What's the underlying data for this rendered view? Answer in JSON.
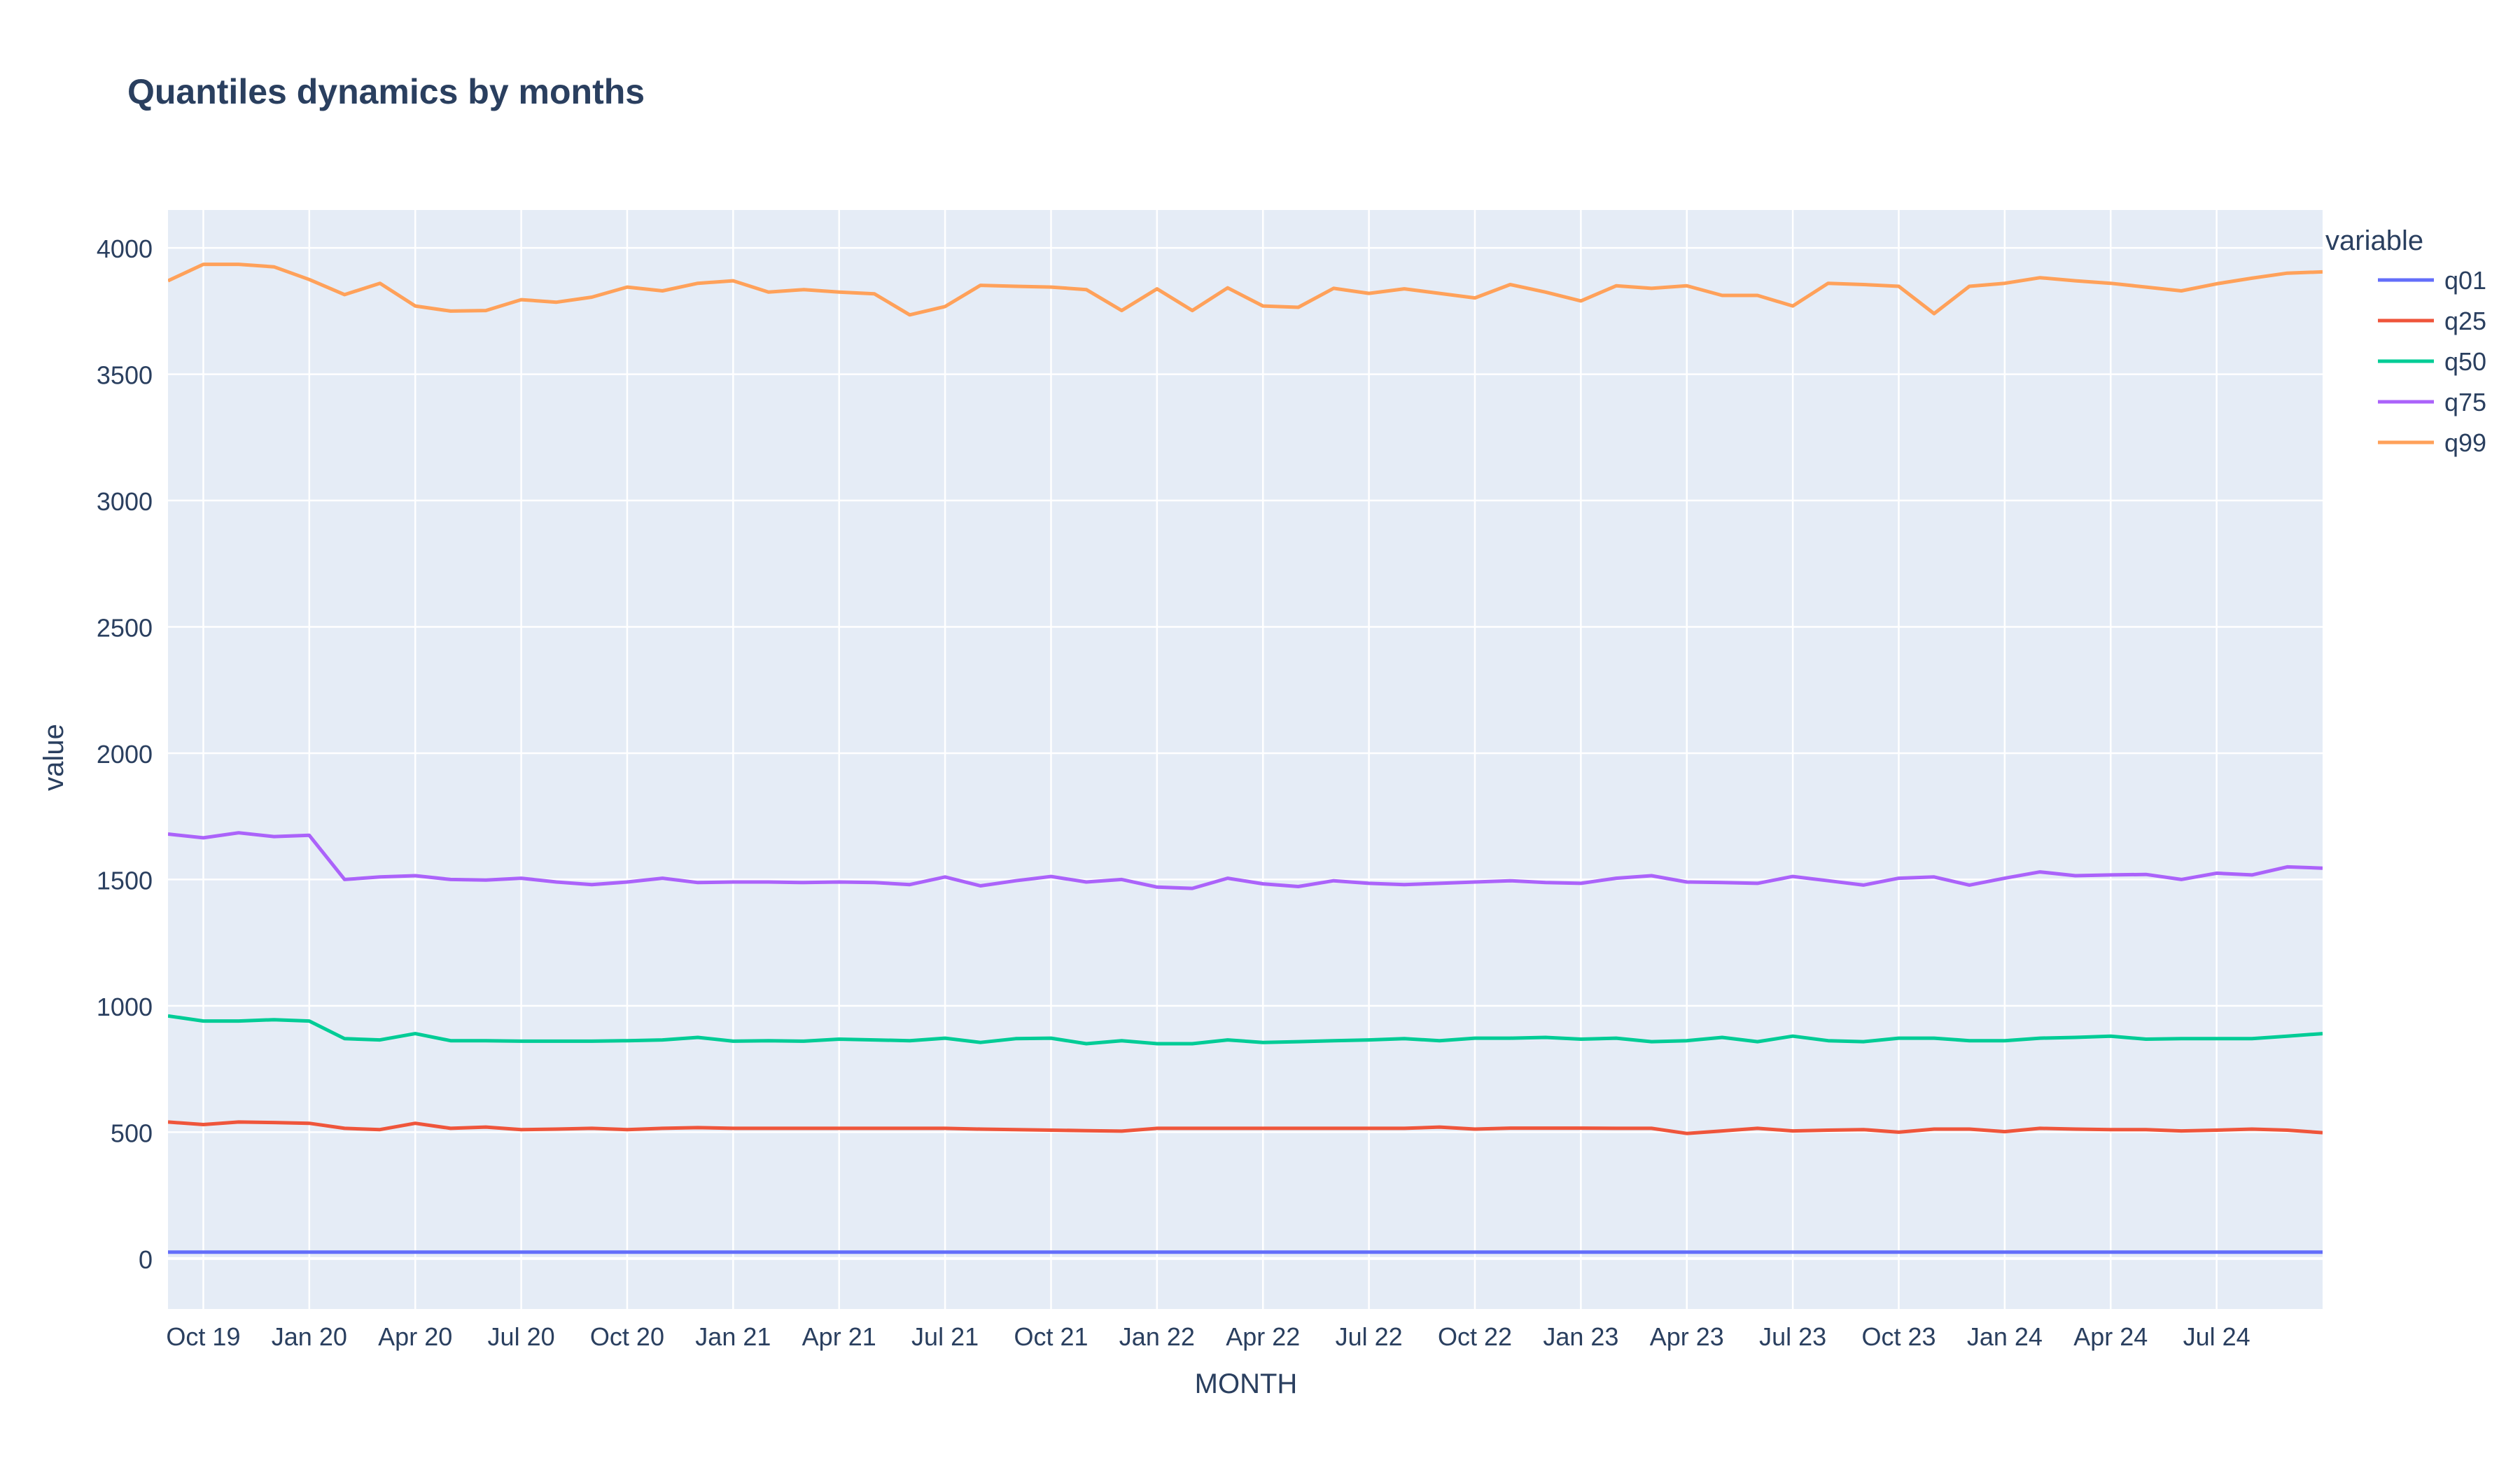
{
  "chart_data": {
    "type": "line",
    "title": "Quantiles dynamics by months",
    "xlabel": "MONTH",
    "ylabel": "value",
    "legend_title": "variable",
    "legend_placement": "right",
    "grid": true,
    "ylim": [
      -200,
      4150
    ],
    "xlim": [
      "2019-09-01",
      "2024-10-01"
    ],
    "x_tick_labels": [
      "Oct 19",
      "Jan 20",
      "Apr 20",
      "Jul 20",
      "Oct 20",
      "Jan 21",
      "Apr 21",
      "Jul 21",
      "Oct 21",
      "Jan 22",
      "Apr 22",
      "Jul 22",
      "Oct 22",
      "Jan 23",
      "Apr 23",
      "Jul 23",
      "Oct 23",
      "Jan 24",
      "Apr 24",
      "Jul 24"
    ],
    "y_ticks": [
      0,
      500,
      1000,
      1500,
      2000,
      2500,
      3000,
      3500,
      4000
    ],
    "x": [
      "2019-09",
      "2019-10",
      "2019-11",
      "2019-12",
      "2020-01",
      "2020-02",
      "2020-03",
      "2020-04",
      "2020-05",
      "2020-06",
      "2020-07",
      "2020-08",
      "2020-09",
      "2020-10",
      "2020-11",
      "2020-12",
      "2021-01",
      "2021-02",
      "2021-03",
      "2021-04",
      "2021-05",
      "2021-06",
      "2021-07",
      "2021-08",
      "2021-09",
      "2021-10",
      "2021-11",
      "2021-12",
      "2022-01",
      "2022-02",
      "2022-03",
      "2022-04",
      "2022-05",
      "2022-06",
      "2022-07",
      "2022-08",
      "2022-09",
      "2022-10",
      "2022-11",
      "2022-12",
      "2023-01",
      "2023-02",
      "2023-03",
      "2023-04",
      "2023-05",
      "2023-06",
      "2023-07",
      "2023-08",
      "2023-09",
      "2023-10",
      "2023-11",
      "2023-12",
      "2024-01",
      "2024-02",
      "2024-03",
      "2024-04",
      "2024-05",
      "2024-06",
      "2024-07",
      "2024-08",
      "2024-09",
      "2024-10"
    ],
    "series": [
      {
        "name": "q01",
        "color": "#636efa",
        "values": [
          25,
          25,
          25,
          25,
          25,
          25,
          25,
          25,
          25,
          25,
          25,
          25,
          25,
          25,
          25,
          25,
          25,
          25,
          25,
          25,
          25,
          25,
          25,
          25,
          25,
          25,
          25,
          25,
          25,
          25,
          25,
          25,
          25,
          25,
          25,
          25,
          25,
          25,
          25,
          25,
          25,
          25,
          25,
          25,
          25,
          25,
          25,
          25,
          25,
          25,
          25,
          25,
          25,
          25,
          25,
          25,
          25,
          25,
          25,
          25,
          25,
          25
        ]
      },
      {
        "name": "q25",
        "color": "#ef553b",
        "values": [
          540,
          530,
          540,
          538,
          535,
          515,
          510,
          535,
          515,
          520,
          510,
          512,
          515,
          510,
          515,
          518,
          515,
          515,
          515,
          515,
          515,
          515,
          515,
          512,
          510,
          508,
          506,
          504,
          515,
          515,
          515,
          515,
          515,
          515,
          515,
          515,
          520,
          512,
          516,
          516,
          516,
          515,
          515,
          495,
          505,
          515,
          505,
          508,
          510,
          500,
          512,
          512,
          502,
          515,
          512,
          510,
          510,
          505,
          508,
          512,
          508,
          498
        ]
      },
      {
        "name": "q50",
        "color": "#00cc96",
        "values": [
          960,
          940,
          940,
          945,
          940,
          870,
          865,
          890,
          862,
          862,
          860,
          860,
          860,
          862,
          865,
          875,
          860,
          862,
          860,
          868,
          865,
          862,
          872,
          855,
          870,
          872,
          850,
          862,
          850,
          850,
          865,
          855,
          858,
          862,
          865,
          870,
          862,
          872,
          872,
          875,
          868,
          872,
          858,
          862,
          875,
          858,
          880,
          862,
          858,
          872,
          872,
          862,
          862,
          872,
          875,
          880,
          868,
          870,
          870,
          870,
          880,
          890
        ]
      },
      {
        "name": "q75",
        "color": "#ab63fa",
        "values": [
          1680,
          1665,
          1685,
          1670,
          1675,
          1500,
          1510,
          1515,
          1500,
          1498,
          1505,
          1490,
          1480,
          1490,
          1505,
          1488,
          1490,
          1490,
          1488,
          1490,
          1488,
          1480,
          1510,
          1475,
          1495,
          1512,
          1490,
          1500,
          1470,
          1465,
          1505,
          1483,
          1472,
          1495,
          1485,
          1480,
          1485,
          1490,
          1495,
          1488,
          1485,
          1505,
          1515,
          1490,
          1488,
          1485,
          1512,
          1495,
          1478,
          1505,
          1510,
          1478,
          1505,
          1530,
          1515,
          1518,
          1520,
          1500,
          1525,
          1518,
          1550,
          1545
        ]
      },
      {
        "name": "q99",
        "color": "#ffa15a",
        "values": [
          3870,
          3935,
          3935,
          3925,
          3875,
          3815,
          3860,
          3770,
          3750,
          3752,
          3795,
          3785,
          3805,
          3845,
          3830,
          3860,
          3870,
          3825,
          3835,
          3825,
          3818,
          3735,
          3768,
          3852,
          3848,
          3845,
          3835,
          3752,
          3838,
          3752,
          3842,
          3770,
          3765,
          3840,
          3820,
          3838,
          3820,
          3802,
          3855,
          3825,
          3790,
          3850,
          3840,
          3850,
          3812,
          3812,
          3770,
          3860,
          3855,
          3848,
          3740,
          3848,
          3860,
          3882,
          3870,
          3860,
          3845,
          3830,
          3858,
          3880,
          3900,
          3905
        ]
      }
    ]
  }
}
